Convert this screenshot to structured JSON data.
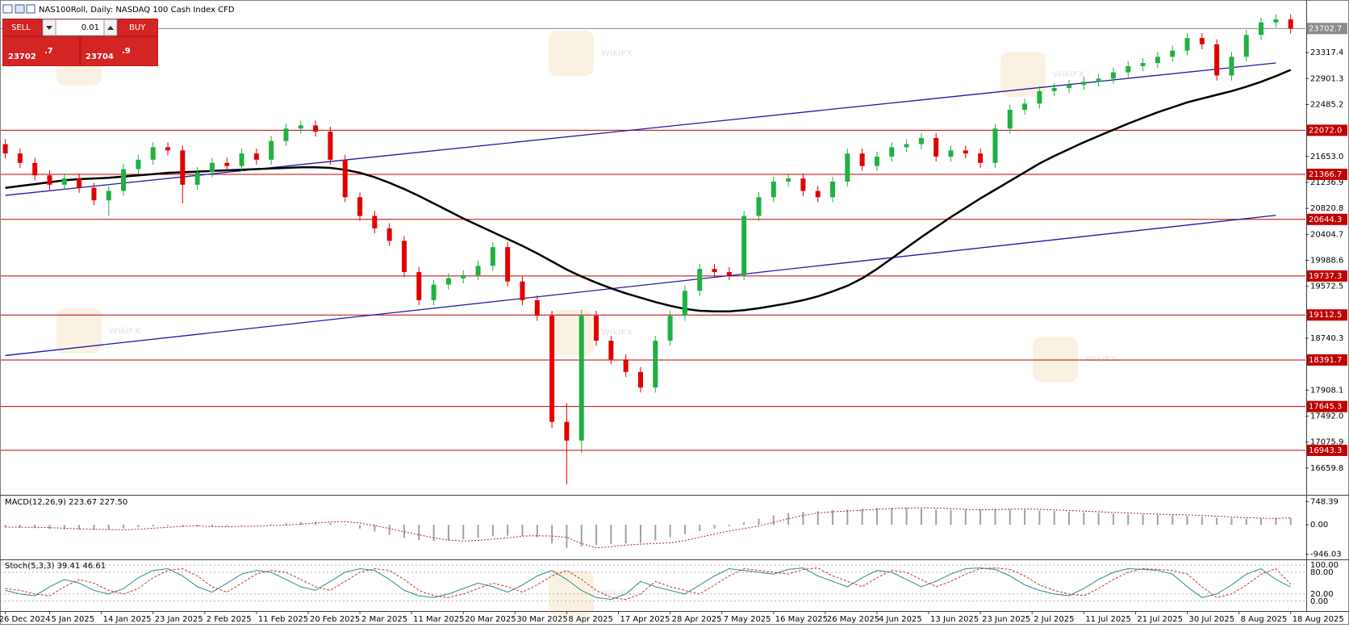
{
  "chart_data": {
    "type": "candlestick",
    "title": "NAS100Roll, Daily:  NASDAQ 100 Cash Index CFD",
    "x": [
      0,
      2,
      4,
      6,
      8,
      10,
      12,
      14,
      16,
      18,
      20,
      22,
      24,
      26,
      28,
      30,
      32,
      34,
      36,
      38,
      40,
      42,
      44,
      46,
      48,
      50,
      52,
      54,
      56,
      58,
      60,
      62,
      64,
      66,
      68,
      70,
      72,
      74,
      76,
      78,
      80,
      82,
      84,
      86,
      88,
      90,
      92,
      94,
      96,
      98,
      100,
      102,
      104,
      106,
      108,
      110,
      112,
      114,
      116,
      118,
      120,
      122,
      124,
      126,
      128,
      130,
      132,
      134,
      136,
      138,
      140,
      142,
      144,
      146,
      148,
      150,
      152,
      154,
      156,
      158,
      160,
      162,
      164,
      166,
      168,
      170,
      172,
      174
    ],
    "xlim": [
      -0.5,
      176
    ],
    "xticks": [
      {
        "value": 0,
        "label": "26 Dec 2024"
      },
      {
        "value": 6,
        "label": "5 Jan 2025"
      },
      {
        "value": 13,
        "label": "14 Jan 2025"
      },
      {
        "value": 20,
        "label": "23 Jan 2025"
      },
      {
        "value": 27,
        "label": "2 Feb 2025"
      },
      {
        "value": 34,
        "label": "11 Feb 2025"
      },
      {
        "value": 41,
        "label": "20 Feb 2025"
      },
      {
        "value": 48,
        "label": "2 Mar 2025"
      },
      {
        "value": 55,
        "label": "11 Mar 2025"
      },
      {
        "value": 62,
        "label": "20 Mar 2025"
      },
      {
        "value": 69,
        "label": "30 Mar 2025"
      },
      {
        "value": 76,
        "label": "8 Apr 2025"
      },
      {
        "value": 83,
        "label": "17 Apr 2025"
      },
      {
        "value": 90,
        "label": "28 Apr 2025"
      },
      {
        "value": 97,
        "label": "7 May 2025"
      },
      {
        "value": 104,
        "label": "16 May 2025"
      },
      {
        "value": 111,
        "label": "26 May 2025"
      },
      {
        "value": 118,
        "label": "4 Jun 2025"
      },
      {
        "value": 125,
        "label": "13 Jun 2025"
      },
      {
        "value": 132,
        "label": "23 Jun 2025"
      },
      {
        "value": 139,
        "label": "2 Jul 2025"
      },
      {
        "value": 146,
        "label": "11 Jul 2025"
      },
      {
        "value": 153,
        "label": "21 Jul 2025"
      },
      {
        "value": 160,
        "label": "30 Jul 2025"
      },
      {
        "value": 167,
        "label": "8 Aug 2025"
      },
      {
        "value": 174,
        "label": "18 Aug 2025"
      }
    ],
    "open": [
      21850,
      21700,
      21550,
      21350,
      21200,
      21300,
      21150,
      20950,
      21100,
      21450,
      21600,
      21800,
      21750,
      21200,
      21400,
      21550,
      21500,
      21700,
      21600,
      21900,
      22100,
      22150,
      22050,
      21600,
      21000,
      20700,
      20500,
      20300,
      19800,
      19350,
      19600,
      19700,
      19750,
      19900,
      20200,
      19650,
      19350,
      19100,
      17400,
      17100,
      19100,
      18700,
      18400,
      18200,
      17950,
      18700,
      19100,
      19500,
      19850,
      19800,
      19750,
      20700,
      21000,
      21250,
      21300,
      21100,
      21000,
      21250,
      21700,
      21500,
      21650,
      21800,
      21850,
      21950,
      21650,
      21750,
      21700,
      21550,
      22100,
      22400,
      22500,
      22700,
      22750,
      22800,
      22850,
      22900,
      23000,
      23100,
      23150,
      23250,
      23350,
      23550,
      23450,
      22950,
      23250,
      23600,
      23800,
      23850
    ],
    "high": [
      21930,
      21780,
      21630,
      21430,
      21380,
      21380,
      21230,
      21180,
      21530,
      21680,
      21880,
      21880,
      21830,
      21480,
      21630,
      21630,
      21780,
      21780,
      21980,
      22180,
      22230,
      22230,
      22130,
      21680,
      21080,
      20780,
      20580,
      20380,
      19880,
      19680,
      19780,
      19830,
      19980,
      20280,
      20280,
      19730,
      19430,
      19180,
      17700,
      19200,
      19180,
      18780,
      18480,
      18280,
      18780,
      19180,
      19580,
      19930,
      19930,
      19880,
      20780,
      21080,
      21330,
      21380,
      21380,
      21180,
      21330,
      21780,
      21780,
      21730,
      21880,
      21930,
      22030,
      22030,
      21830,
      21830,
      21780,
      22180,
      22480,
      22580,
      22780,
      22830,
      22880,
      22930,
      22980,
      23080,
      23180,
      23230,
      23330,
      23430,
      23630,
      23630,
      23530,
      23330,
      23680,
      23880,
      23930,
      23930
    ],
    "low": [
      21620,
      21470,
      21270,
      21120,
      21120,
      21070,
      20870,
      20700,
      21020,
      21370,
      21520,
      21670,
      20900,
      21120,
      21320,
      21420,
      21420,
      21520,
      21520,
      21820,
      22020,
      21970,
      21520,
      20920,
      20620,
      20420,
      20220,
      19720,
      19270,
      19270,
      19520,
      19620,
      19670,
      19820,
      19570,
      19270,
      19020,
      17300,
      16400,
      16900,
      18620,
      18320,
      18120,
      17870,
      17870,
      18620,
      19020,
      19420,
      19720,
      19670,
      19670,
      20620,
      20920,
      21170,
      21020,
      20920,
      20920,
      21170,
      21420,
      21420,
      21570,
      21720,
      21770,
      21570,
      21570,
      21620,
      21470,
      21470,
      22020,
      22320,
      22420,
      22620,
      22670,
      22720,
      22770,
      22820,
      22920,
      23020,
      23070,
      23170,
      23270,
      23370,
      22870,
      22870,
      23170,
      23520,
      23720,
      23620
    ],
    "close": [
      21700,
      21550,
      21350,
      21200,
      21300,
      21150,
      20950,
      21100,
      21450,
      21600,
      21800,
      21750,
      21200,
      21400,
      21550,
      21500,
      21700,
      21600,
      21900,
      22100,
      22150,
      22050,
      21600,
      21000,
      20700,
      20500,
      20300,
      19800,
      19350,
      19600,
      19700,
      19750,
      19900,
      20200,
      19650,
      19350,
      19100,
      17400,
      17100,
      19100,
      18700,
      18400,
      18200,
      17950,
      18700,
      19100,
      19500,
      19850,
      19800,
      19750,
      20700,
      21000,
      21250,
      21300,
      21100,
      21000,
      21250,
      21700,
      21500,
      21650,
      21800,
      21850,
      21950,
      21650,
      21750,
      21700,
      21550,
      22100,
      22400,
      22500,
      22700,
      22750,
      22800,
      22850,
      22900,
      23000,
      23100,
      23150,
      23250,
      23350,
      23550,
      23450,
      22950,
      23250,
      23600,
      23800,
      23850,
      23702.7
    ],
    "up_color": "#1fb141",
    "down_color": "#e00000",
    "ylim": [
      16244,
      24108
    ],
    "yticks": [
      23317.4,
      22901.3,
      22485.2,
      {
        "value": 21653,
        "label": "21653.0"
      },
      21236.9,
      20820.8,
      20404.7,
      19988.6,
      19572.5,
      18740.3,
      17908.1,
      {
        "value": 17492,
        "label": "17492.0"
      },
      17075.9,
      16659.8
    ],
    "price_line": 23702.7,
    "price_line_color": "#8c8c8c",
    "levels": {
      "color": "#c00000",
      "values": [
        {
          "value": 22072,
          "label": "22072.0"
        },
        {
          "value": 21366.7,
          "label": "21366.7"
        },
        {
          "value": 20644.3,
          "label": "20644.3"
        },
        {
          "value": 19737.3,
          "label": "19737.3"
        },
        {
          "value": 19112.5,
          "label": "19112.5"
        },
        {
          "value": 18391.7,
          "label": "18391.7"
        },
        {
          "value": 17645.3,
          "label": "17645.3"
        },
        {
          "value": 16943.3,
          "label": "16943.3"
        }
      ]
    },
    "moving_average": {
      "color": "#000000",
      "values": [
        21150,
        21180,
        21210,
        21240,
        21270,
        21290,
        21300,
        21310,
        21330,
        21350,
        21370,
        21390,
        21400,
        21410,
        21420,
        21430,
        21440,
        21450,
        21460,
        21470,
        21480,
        21480,
        21470,
        21440,
        21390,
        21320,
        21230,
        21130,
        21020,
        20900,
        20780,
        20660,
        20550,
        20440,
        20330,
        20220,
        20100,
        19970,
        19840,
        19730,
        19630,
        19540,
        19460,
        19390,
        19320,
        19260,
        19210,
        19180,
        19170,
        19170,
        19190,
        19220,
        19260,
        19300,
        19350,
        19410,
        19490,
        19580,
        19700,
        19850,
        20020,
        20190,
        20360,
        20520,
        20680,
        20830,
        20980,
        21120,
        21260,
        21400,
        21540,
        21660,
        21770,
        21880,
        21980,
        22080,
        22180,
        22270,
        22360,
        22440,
        22520,
        22580,
        22640,
        22700,
        22770,
        22850,
        22940,
        23040
      ]
    },
    "trend_lines": [
      {
        "color": "#1a1aa8",
        "x": [
          0,
          172
        ],
        "y": [
          18463,
          20710
        ]
      },
      {
        "color": "#1a1aa8",
        "x": [
          0,
          172
        ],
        "y": [
          21029,
          23151
        ]
      }
    ],
    "macd": {
      "label": "MACD(12,26,9) 223.67 227.50",
      "bar_color": "#a0a0a0",
      "signal_color": "#b22222",
      "ylim": [
        -1085,
        887
      ],
      "yticks": [
        748.39,
        {
          "value": 0,
          "label": "0.00"
        },
        -946.03
      ],
      "main": [
        -80,
        -90,
        -110,
        -130,
        -140,
        -150,
        -160,
        -140,
        -110,
        -80,
        -50,
        -30,
        -60,
        -60,
        -50,
        -40,
        -20,
        -10,
        20,
        60,
        90,
        100,
        60,
        -20,
        -120,
        -220,
        -320,
        -420,
        -490,
        -520,
        -500,
        -460,
        -420,
        -360,
        -350,
        -360,
        -400,
        -600,
        -740,
        -700,
        -650,
        -620,
        -600,
        -580,
        -500,
        -400,
        -300,
        -200,
        -120,
        -40,
        80,
        200,
        300,
        380,
        420,
        440,
        470,
        500,
        520,
        540,
        550,
        540,
        520,
        500,
        480,
        490,
        500,
        510,
        500,
        480,
        460,
        440,
        420,
        400,
        380,
        360,
        340,
        330,
        320,
        300,
        280,
        250,
        230,
        220,
        200,
        210,
        225,
        223.67
      ],
      "signal": [
        -70,
        -75,
        -80,
        -90,
        -110,
        -130,
        -140,
        -150,
        -160,
        -140,
        -110,
        -80,
        -50,
        -30,
        -60,
        -60,
        -50,
        -40,
        -20,
        -10,
        20,
        60,
        90,
        100,
        60,
        -20,
        -120,
        -220,
        -320,
        -420,
        -490,
        -520,
        -500,
        -460,
        -420,
        -360,
        -350,
        -360,
        -400,
        -600,
        -740,
        -700,
        -650,
        -620,
        -600,
        -580,
        -500,
        -400,
        -300,
        -200,
        -120,
        -40,
        80,
        200,
        300,
        380,
        420,
        440,
        470,
        500,
        520,
        540,
        550,
        540,
        520,
        500,
        480,
        490,
        500,
        510,
        500,
        480,
        460,
        440,
        420,
        400,
        380,
        360,
        340,
        330,
        320,
        300,
        280,
        250,
        230,
        220,
        200,
        227.5
      ]
    },
    "stochastic": {
      "label": "Stoch(5,3,3) 39.41 46.61",
      "main_color": "#2e8b8b",
      "signal_color": "#c0392b",
      "ylim": [
        -25,
        109
      ],
      "yticks": [
        {
          "value": 100,
          "label": "100.00"
        },
        {
          "value": 80,
          "label": "80.00"
        },
        {
          "value": 20,
          "label": "20.00"
        },
        {
          "value": 0,
          "label": "0.00"
        }
      ],
      "main": [
        30,
        20,
        15,
        40,
        60,
        50,
        30,
        20,
        35,
        65,
        85,
        90,
        70,
        40,
        25,
        50,
        75,
        85,
        80,
        60,
        40,
        30,
        55,
        80,
        90,
        85,
        60,
        30,
        15,
        10,
        20,
        35,
        50,
        40,
        25,
        45,
        70,
        85,
        60,
        30,
        10,
        5,
        20,
        55,
        40,
        30,
        20,
        45,
        70,
        90,
        85,
        80,
        75,
        88,
        92,
        70,
        55,
        40,
        65,
        85,
        80,
        60,
        40,
        55,
        75,
        90,
        92,
        88,
        70,
        45,
        30,
        20,
        15,
        35,
        60,
        80,
        90,
        88,
        85,
        75,
        40,
        10,
        20,
        45,
        75,
        90,
        60,
        39.41
      ],
      "signal": [
        35,
        30,
        20,
        15,
        40,
        60,
        50,
        30,
        20,
        35,
        65,
        85,
        90,
        70,
        40,
        25,
        50,
        75,
        85,
        80,
        60,
        40,
        30,
        55,
        80,
        90,
        85,
        60,
        30,
        15,
        10,
        20,
        35,
        50,
        40,
        25,
        45,
        70,
        85,
        60,
        30,
        10,
        5,
        20,
        55,
        40,
        30,
        20,
        45,
        70,
        90,
        85,
        80,
        75,
        88,
        92,
        70,
        55,
        40,
        65,
        85,
        80,
        60,
        40,
        55,
        75,
        90,
        92,
        88,
        70,
        45,
        30,
        20,
        15,
        35,
        60,
        80,
        90,
        88,
        85,
        75,
        40,
        10,
        20,
        45,
        75,
        90,
        46.61
      ]
    },
    "watermark": "WikiFX",
    "trade_panel": {
      "sell": "SELL",
      "buy": "BUY",
      "lot": "0.01",
      "sell_main": "23702",
      "sell_frac": ".7",
      "buy_main": "23704",
      "buy_frac": ".9"
    }
  }
}
